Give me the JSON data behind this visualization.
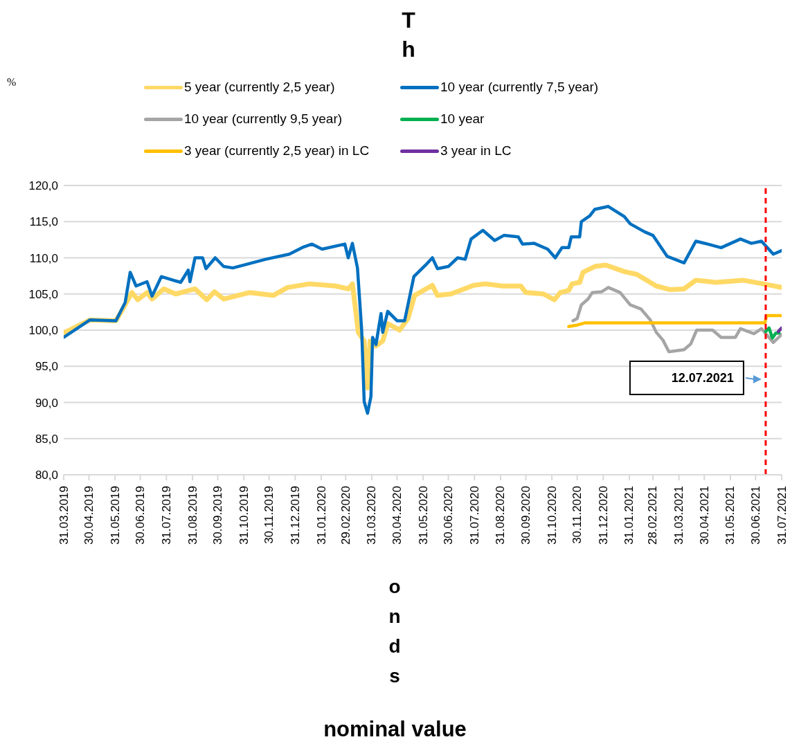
{
  "chart_data": {
    "type": "line",
    "title": "Th",
    "xlabel": "onds",
    "annotations": [
      "%",
      "nominal value"
    ],
    "xlim": [
      "2019-03-31",
      "2021-07-31"
    ],
    "xticks": [
      {
        "value": "2019-03-31",
        "label": "31.03.2019"
      },
      {
        "value": "2019-04-30",
        "label": "30.04.2019"
      },
      {
        "value": "2019-05-31",
        "label": "31.05.2019"
      },
      {
        "value": "2019-06-30",
        "label": "30.06.2019"
      },
      {
        "value": "2019-07-31",
        "label": "31.07.2019"
      },
      {
        "value": "2019-08-31",
        "label": "31.08.2019"
      },
      {
        "value": "2019-09-30",
        "label": "30.09.2019"
      },
      {
        "value": "2019-10-31",
        "label": "31.10.2019"
      },
      {
        "value": "2019-11-30",
        "label": "30.11.2019"
      },
      {
        "value": "2019-12-31",
        "label": "31.12.2019"
      },
      {
        "value": "2020-01-31",
        "label": "31.01.2020"
      },
      {
        "value": "2020-02-29",
        "label": "29.02.2020"
      },
      {
        "value": "2020-03-31",
        "label": "31.03.2020"
      },
      {
        "value": "2020-04-30",
        "label": "30.04.2020"
      },
      {
        "value": "2020-05-31",
        "label": "31.05.2020"
      },
      {
        "value": "2020-06-30",
        "label": "30.06.2020"
      },
      {
        "value": "2020-07-31",
        "label": "31.07.2020"
      },
      {
        "value": "2020-08-31",
        "label": "31.08.2020"
      },
      {
        "value": "2020-09-30",
        "label": "30.09.2020"
      },
      {
        "value": "2020-10-31",
        "label": "31.10.2020"
      },
      {
        "value": "2020-11-30",
        "label": "30.11.2020"
      },
      {
        "value": "2020-12-31",
        "label": "31.12.2020"
      },
      {
        "value": "2021-01-31",
        "label": "31.01.2021"
      },
      {
        "value": "2021-02-28",
        "label": "28.02.2021"
      },
      {
        "value": "2021-03-31",
        "label": "31.03.2021"
      },
      {
        "value": "2021-04-30",
        "label": "30.04.2021"
      },
      {
        "value": "2021-05-31",
        "label": "31.05.2021"
      },
      {
        "value": "2021-06-30",
        "label": "30.06.2021"
      },
      {
        "value": "2021-07-31",
        "label": "31.07.2021"
      }
    ],
    "ylim": [
      80,
      120
    ],
    "yticks": [
      {
        "value": 80,
        "label": "80,0"
      },
      {
        "value": 85,
        "label": "85,0"
      },
      {
        "value": 90,
        "label": "90,0"
      },
      {
        "value": 95,
        "label": "95,0"
      },
      {
        "value": 100,
        "label": "100,0"
      },
      {
        "value": 105,
        "label": "105,0"
      },
      {
        "value": 110,
        "label": "110,0"
      },
      {
        "value": 115,
        "label": "115,0"
      },
      {
        "value": 120,
        "label": "120,0"
      }
    ],
    "grid": "y",
    "legend": "top",
    "marker": "none",
    "line_style": "solid",
    "ref_lines": [
      {
        "axis": "x",
        "value": "2021-07-12",
        "label": "12.07.2021",
        "color": "#ff0000",
        "line_style": "dashed"
      }
    ],
    "series": [
      {
        "name": "5 year (currently 2,5 year)",
        "color": "#ffd966",
        "x": [
          "2019-03-31",
          "2019-05-01",
          "2019-06-01",
          "2019-06-12",
          "2019-06-20",
          "2019-06-27",
          "2019-07-08",
          "2019-07-14",
          "2019-07-28",
          "2019-08-11",
          "2019-09-03",
          "2019-09-17",
          "2019-09-26",
          "2019-10-07",
          "2019-11-07",
          "2019-12-05",
          "2019-12-22",
          "2020-01-17",
          "2020-02-17",
          "2020-03-03",
          "2020-03-08",
          "2020-03-15",
          "2020-03-22",
          "2020-03-26",
          "2020-03-29",
          "2020-04-05",
          "2020-04-13",
          "2020-04-19",
          "2020-05-03",
          "2020-05-13",
          "2020-05-21",
          "2020-06-11",
          "2020-06-17",
          "2020-07-03",
          "2020-07-30",
          "2020-08-13",
          "2020-09-02",
          "2020-09-24",
          "2020-09-30",
          "2020-10-21",
          "2020-11-03",
          "2020-11-10",
          "2020-11-20",
          "2020-11-24",
          "2020-12-03",
          "2020-12-07",
          "2020-12-21",
          "2021-01-03",
          "2021-01-25",
          "2021-02-09",
          "2021-03-04",
          "2021-03-20",
          "2021-04-06",
          "2021-04-20",
          "2021-05-14",
          "2021-06-15",
          "2021-07-09",
          "2021-07-31"
        ],
        "values": [
          99.6,
          101.4,
          101.3,
          103.5,
          105.2,
          104.2,
          105.2,
          104.3,
          105.7,
          105.0,
          105.7,
          104.2,
          105.3,
          104.3,
          105.2,
          104.8,
          105.9,
          106.4,
          106.1,
          105.7,
          106.4,
          99.7,
          98.5,
          92.0,
          98.5,
          97.8,
          98.5,
          100.9,
          100.0,
          101.6,
          104.8,
          106.2,
          104.8,
          105.0,
          106.2,
          106.4,
          106.1,
          106.1,
          105.2,
          105.0,
          104.2,
          105.2,
          105.5,
          106.4,
          106.6,
          108.0,
          108.8,
          109.0,
          108.1,
          107.7,
          106.1,
          105.6,
          105.7,
          106.9,
          106.6,
          106.9,
          106.4,
          105.9
        ]
      },
      {
        "name": "10 year (currently 7,5 year)",
        "color": "#0070c0",
        "x": [
          "2019-03-31",
          "2019-05-01",
          "2019-06-01",
          "2019-06-12",
          "2019-06-18",
          "2019-06-25",
          "2019-07-08",
          "2019-07-14",
          "2019-07-25",
          "2019-08-17",
          "2019-08-26",
          "2019-08-28",
          "2019-09-03",
          "2019-09-12",
          "2019-09-16",
          "2019-09-27",
          "2019-10-07",
          "2019-10-18",
          "2019-11-26",
          "2019-12-24",
          "2020-01-10",
          "2020-01-20",
          "2020-02-01",
          "2020-02-28",
          "2020-03-03",
          "2020-03-08",
          "2020-03-14",
          "2020-03-19",
          "2020-03-22",
          "2020-03-26",
          "2020-03-30",
          "2020-04-01",
          "2020-04-05",
          "2020-04-11",
          "2020-04-13",
          "2020-04-19",
          "2020-04-30",
          "2020-05-09",
          "2020-05-20",
          "2020-06-03",
          "2020-06-11",
          "2020-06-17",
          "2020-06-30",
          "2020-07-11",
          "2020-07-20",
          "2020-07-27",
          "2020-08-10",
          "2020-08-24",
          "2020-09-04",
          "2020-09-21",
          "2020-09-26",
          "2020-10-10",
          "2020-10-26",
          "2020-11-04",
          "2020-11-12",
          "2020-11-20",
          "2020-11-23",
          "2020-12-03",
          "2020-12-05",
          "2020-12-15",
          "2020-12-21",
          "2021-01-06",
          "2021-01-25",
          "2021-02-01",
          "2021-02-18",
          "2021-02-28",
          "2021-03-17",
          "2021-04-06",
          "2021-04-20",
          "2021-05-04",
          "2021-05-20",
          "2021-06-12",
          "2021-06-25",
          "2021-07-07",
          "2021-07-21",
          "2021-07-31"
        ],
        "values": [
          99.0,
          101.4,
          101.3,
          103.8,
          108.0,
          106.1,
          106.7,
          104.7,
          107.4,
          106.6,
          108.3,
          106.7,
          110.0,
          110.0,
          108.5,
          110.0,
          108.8,
          108.6,
          109.8,
          110.5,
          111.5,
          111.9,
          111.2,
          111.9,
          110.0,
          112.0,
          108.6,
          100.0,
          90.1,
          88.5,
          90.8,
          99.0,
          98.0,
          102.3,
          99.7,
          102.6,
          101.3,
          101.3,
          107.4,
          109.0,
          110.0,
          108.5,
          108.8,
          110.0,
          109.8,
          112.6,
          113.8,
          112.4,
          113.1,
          112.9,
          111.9,
          112.0,
          111.2,
          110.0,
          111.4,
          111.4,
          112.9,
          112.9,
          115.0,
          115.8,
          116.7,
          117.1,
          115.7,
          114.7,
          113.6,
          113.1,
          110.2,
          109.3,
          112.3,
          111.9,
          111.4,
          112.6,
          112.0,
          112.3,
          110.5,
          111.0
        ]
      },
      {
        "name": "10 year (currently 9,5 year)",
        "color": "#a5a5a5",
        "x": [
          "2020-11-25",
          "2020-11-30",
          "2020-12-05",
          "2020-12-13",
          "2020-12-18",
          "2020-12-29",
          "2021-01-06",
          "2021-01-20",
          "2021-02-01",
          "2021-02-14",
          "2021-02-25",
          "2021-03-04",
          "2021-03-12",
          "2021-03-19",
          "2021-04-06",
          "2021-04-14",
          "2021-04-21",
          "2021-05-10",
          "2021-05-20",
          "2021-06-06",
          "2021-06-12",
          "2021-06-28",
          "2021-07-07",
          "2021-07-21",
          "2021-07-31"
        ],
        "values": [
          101.3,
          101.6,
          103.5,
          104.3,
          105.2,
          105.3,
          105.9,
          105.2,
          103.5,
          102.9,
          101.4,
          99.7,
          98.6,
          97.0,
          97.3,
          98.1,
          100.0,
          100.0,
          99.0,
          99.0,
          100.2,
          99.5,
          100.2,
          98.3,
          99.4
        ]
      },
      {
        "name": "10 year",
        "color": "#00b050",
        "x": [
          "2021-07-12",
          "2021-07-16",
          "2021-07-20",
          "2021-07-24",
          "2021-07-28"
        ],
        "values": [
          99.8,
          100.3,
          98.9,
          99.6,
          99.6
        ]
      },
      {
        "name": "3 year (currently 2,5 year) in LC",
        "color": "#ffc000",
        "x": [
          "2020-11-20",
          "2020-11-30",
          "2020-12-09",
          "2021-07-11",
          "2021-07-13",
          "2021-07-31"
        ],
        "values": [
          100.5,
          100.7,
          101.0,
          101.0,
          102.0,
          102.0
        ]
      },
      {
        "name": "3 year in LC",
        "color": "#7030a0",
        "x": [
          "2021-07-27",
          "2021-07-31"
        ],
        "values": [
          99.8,
          100.3
        ]
      }
    ]
  }
}
